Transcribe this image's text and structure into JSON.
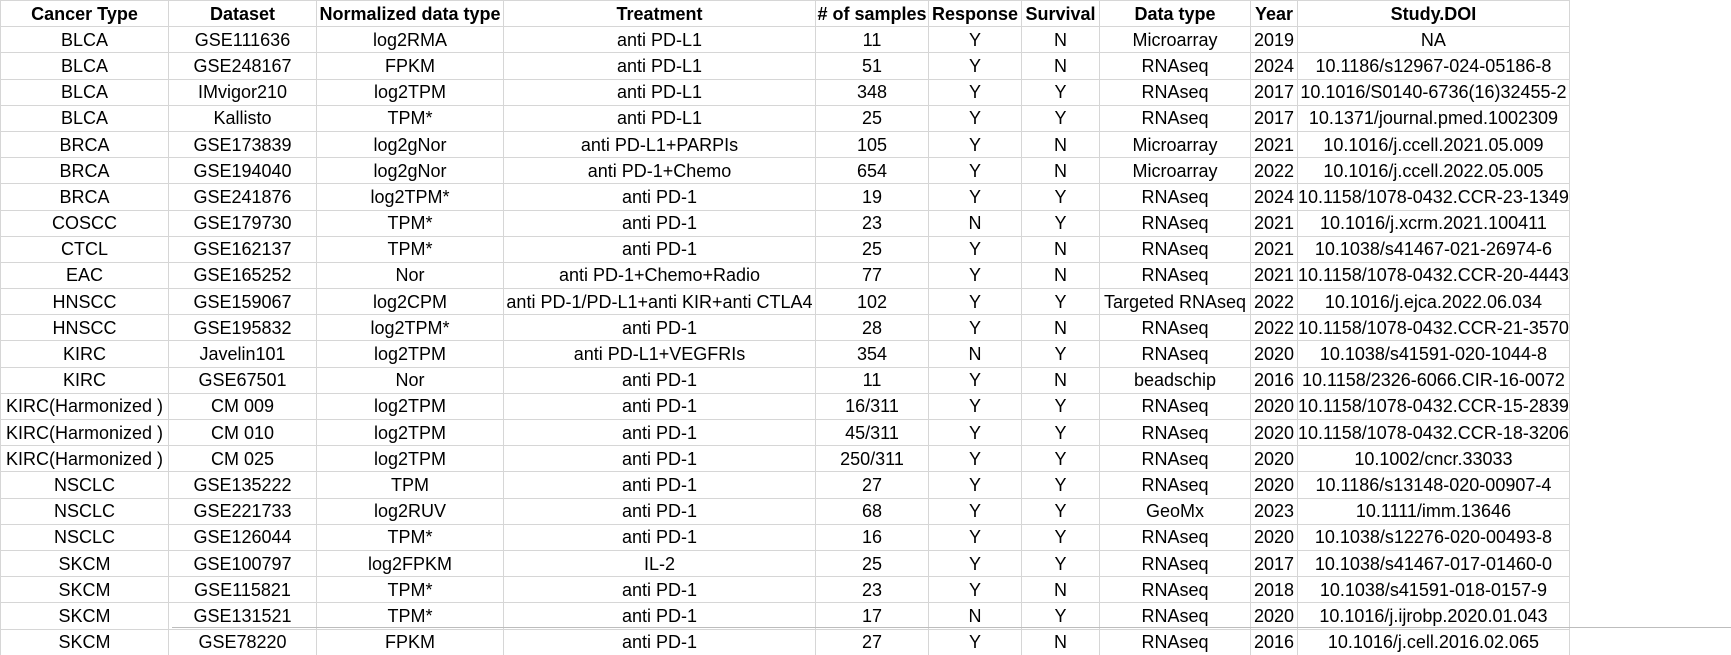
{
  "table": {
    "headers": [
      "Cancer Type",
      "Dataset",
      "Normalized data type",
      "Treatment",
      "# of samples",
      "Response",
      "Survival",
      "Data type",
      "Year",
      "Study.DOI"
    ],
    "rows": [
      [
        "BLCA",
        "GSE111636",
        "log2RMA",
        "anti PD-L1",
        "11",
        "Y",
        "N",
        "Microarray",
        "2019",
        "NA"
      ],
      [
        "BLCA",
        "GSE248167",
        "FPKM",
        "anti PD-L1",
        "51",
        "Y",
        "N",
        "RNAseq",
        "2024",
        "10.1186/s12967-024-05186-8"
      ],
      [
        "BLCA",
        "IMvigor210",
        "log2TPM",
        "anti PD-L1",
        "348",
        "Y",
        "Y",
        "RNAseq",
        "2017",
        "10.1016/S0140-6736(16)32455-2"
      ],
      [
        "BLCA",
        "Kallisto",
        "TPM*",
        "anti PD-L1",
        "25",
        "Y",
        "Y",
        "RNAseq",
        "2017",
        "10.1371/journal.pmed.1002309"
      ],
      [
        "BRCA",
        "GSE173839",
        "log2gNor",
        "anti PD-L1+PARPIs",
        "105",
        "Y",
        "N",
        "Microarray",
        "2021",
        "10.1016/j.ccell.2021.05.009"
      ],
      [
        "BRCA",
        "GSE194040",
        "log2gNor",
        "anti PD-1+Chemo",
        "654",
        "Y",
        "N",
        "Microarray",
        "2022",
        "10.1016/j.ccell.2022.05.005"
      ],
      [
        "BRCA",
        "GSE241876",
        "log2TPM*",
        "anti PD-1",
        "19",
        "Y",
        "Y",
        "RNAseq",
        "2024",
        "10.1158/1078-0432.CCR-23-1349"
      ],
      [
        "COSCC",
        "GSE179730",
        "TPM*",
        "anti PD-1",
        "23",
        "N",
        "Y",
        "RNAseq",
        "2021",
        "10.1016/j.xcrm.2021.100411"
      ],
      [
        "CTCL",
        "GSE162137",
        "TPM*",
        "anti PD-1",
        "25",
        "Y",
        "N",
        "RNAseq",
        "2021",
        "10.1038/s41467-021-26974-6"
      ],
      [
        "EAC",
        "GSE165252",
        "Nor",
        "anti PD-1+Chemo+Radio",
        "77",
        "Y",
        "N",
        "RNAseq",
        "2021",
        "10.1158/1078-0432.CCR-20-4443"
      ],
      [
        "HNSCC",
        "GSE159067",
        "log2CPM",
        "anti PD-1/PD-L1+anti KIR+anti CTLA4",
        "102",
        "Y",
        "Y",
        "Targeted RNAseq",
        "2022",
        "10.1016/j.ejca.2022.06.034"
      ],
      [
        "HNSCC",
        "GSE195832",
        "log2TPM*",
        "anti PD-1",
        "28",
        "Y",
        "N",
        "RNAseq",
        "2022",
        "10.1158/1078-0432.CCR-21-3570"
      ],
      [
        "KIRC",
        "Javelin101",
        "log2TPM",
        "anti PD-L1+VEGFRIs",
        "354",
        "N",
        "Y",
        "RNAseq",
        "2020",
        "10.1038/s41591-020-1044-8"
      ],
      [
        "KIRC",
        "GSE67501",
        "Nor",
        "anti PD-1",
        "11",
        "Y",
        "N",
        "beadschip",
        "2016",
        "10.1158/2326-6066.CIR-16-0072"
      ],
      [
        "KIRC(Harmonized )",
        "CM 009",
        "log2TPM",
        "anti PD-1",
        "16/311",
        "Y",
        "Y",
        "RNAseq",
        "2020",
        "10.1158/1078-0432.CCR-15-2839"
      ],
      [
        "KIRC(Harmonized )",
        "CM 010",
        "log2TPM",
        "anti PD-1",
        "45/311",
        "Y",
        "Y",
        "RNAseq",
        "2020",
        "10.1158/1078-0432.CCR-18-3206"
      ],
      [
        "KIRC(Harmonized )",
        "CM 025",
        "log2TPM",
        "anti PD-1",
        "250/311",
        "Y",
        "Y",
        "RNAseq",
        "2020",
        "10.1002/cncr.33033"
      ],
      [
        "NSCLC",
        "GSE135222",
        "TPM",
        "anti PD-1",
        "27",
        "Y",
        "Y",
        "RNAseq",
        "2020",
        "10.1186/s13148-020-00907-4"
      ],
      [
        "NSCLC",
        "GSE221733",
        "log2RUV",
        "anti PD-1",
        "68",
        "Y",
        "Y",
        "GeoMx",
        "2023",
        "10.1111/imm.13646"
      ],
      [
        "NSCLC",
        "GSE126044",
        "TPM*",
        "anti PD-1",
        "16",
        "Y",
        "Y",
        "RNAseq",
        "2020",
        "10.1038/s12276-020-00493-8"
      ],
      [
        "SKCM",
        "GSE100797",
        "log2FPKM",
        "IL-2",
        "25",
        "Y",
        "Y",
        "RNAseq",
        "2017",
        "10.1038/s41467-017-01460-0"
      ],
      [
        "SKCM",
        "GSE115821",
        "TPM*",
        "anti PD-1",
        "23",
        "Y",
        "N",
        "RNAseq",
        "2018",
        "10.1038/s41591-018-0157-9"
      ],
      [
        "SKCM",
        "GSE131521",
        "TPM*",
        "anti PD-1",
        "17",
        "N",
        "Y",
        "RNAseq",
        "2020",
        "10.1016/j.ijrobp.2020.01.043"
      ],
      [
        "SKCM",
        "GSE78220",
        "FPKM",
        "anti PD-1",
        "27",
        "Y",
        "N",
        "RNAseq",
        "2016",
        "10.1016/j.cell.2016.02.065"
      ]
    ]
  }
}
